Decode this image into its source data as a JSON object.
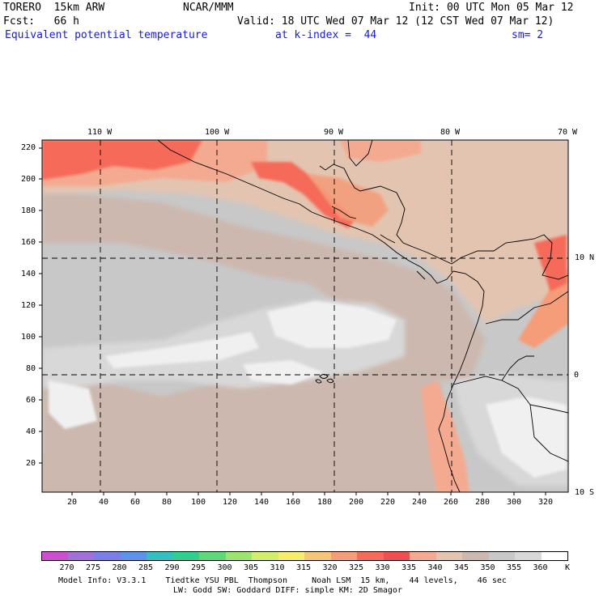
{
  "header": {
    "model": "TORERO  15km ARW",
    "org": "NCAR/MMM",
    "init": "Init: 00 UTC Mon 05 Mar 12",
    "fcst": "Fcst:   66 h",
    "valid": "Valid: 18 UTC Wed 07 Mar 12 (12 CST Wed 07 Mar 12)",
    "field": "Equivalent potential temperature",
    "level": "at k-index =  44",
    "smooth": "sm= 2"
  },
  "map": {
    "lon_labels": [
      "110 W",
      "100 W",
      "90 W",
      "80 W",
      "70 W"
    ],
    "lat_labels": [
      "10 N",
      "0",
      "10 S"
    ],
    "y_ticks": [
      "220",
      "200",
      "180",
      "160",
      "140",
      "120",
      "100",
      "80",
      "60",
      "40",
      "20"
    ],
    "x_ticks": [
      "20",
      "40",
      "60",
      "80",
      "100",
      "120",
      "140",
      "160",
      "180",
      "200",
      "220",
      "240",
      "260",
      "280",
      "300",
      "320"
    ],
    "grid_style": "dashed",
    "colors": {
      "t320": "#f4c8a8",
      "t325": "#f59c78",
      "t330": "#f56a58",
      "t335": "#f04e50",
      "t340": "#e3c4b0",
      "t345": "#ccb8ae",
      "t350": "#c8c8c8",
      "t355": "#d8d8d8",
      "t360": "#f0f0f0"
    }
  },
  "colorbar": {
    "labels": [
      "270",
      "275",
      "280",
      "285",
      "290",
      "295",
      "300",
      "305",
      "310",
      "315",
      "320",
      "325",
      "330",
      "335",
      "340",
      "345",
      "350",
      "355",
      "360"
    ],
    "unit": "K",
    "colors": [
      "#cc4fd0",
      "#a36fd8",
      "#7b7ee6",
      "#5a92ec",
      "#33c0c0",
      "#2fcf92",
      "#5fd87a",
      "#9be46e",
      "#d4ee6c",
      "#f6ee68",
      "#f6c678",
      "#f59c78",
      "#f56a58",
      "#f04e50",
      "#f4aa90",
      "#e3c4b0",
      "#ccb8ae",
      "#c8c8c8",
      "#d8d8d8",
      "#ffffff"
    ]
  },
  "footer": {
    "line1": "Model Info: V3.3.1    Tiedtke YSU PBL  Thompson     Noah LSM  15 km,    44 levels,    46 sec",
    "line2": "LW: Godd SW: Goddard DIFF: simple KM: 2D Smagor"
  }
}
